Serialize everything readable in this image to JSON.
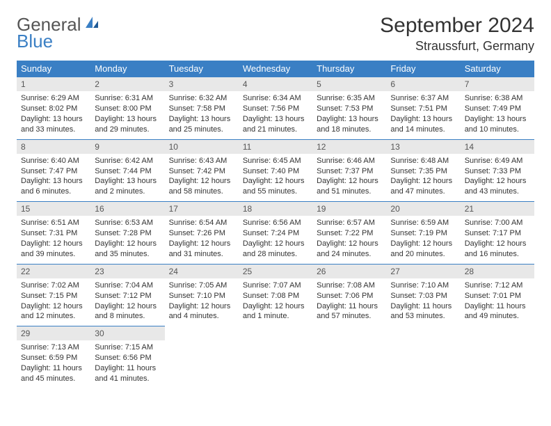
{
  "logo": {
    "word1": "General",
    "word2": "Blue"
  },
  "title": "September 2024",
  "location": "Straussfurt, Germany",
  "colors": {
    "header_bg": "#3a7fc4",
    "header_fg": "#ffffff",
    "daynum_bg": "#e8e8e8",
    "daynum_border": "#3a7fc4",
    "text": "#333333",
    "page_bg": "#ffffff"
  },
  "weekdays": [
    "Sunday",
    "Monday",
    "Tuesday",
    "Wednesday",
    "Thursday",
    "Friday",
    "Saturday"
  ],
  "grid": {
    "rows": 6,
    "cols": 7,
    "start_col": 0,
    "days_in_month": 30
  },
  "days": {
    "1": {
      "sunrise": "6:29 AM",
      "sunset": "8:02 PM",
      "daylight": "13 hours and 33 minutes."
    },
    "2": {
      "sunrise": "6:31 AM",
      "sunset": "8:00 PM",
      "daylight": "13 hours and 29 minutes."
    },
    "3": {
      "sunrise": "6:32 AM",
      "sunset": "7:58 PM",
      "daylight": "13 hours and 25 minutes."
    },
    "4": {
      "sunrise": "6:34 AM",
      "sunset": "7:56 PM",
      "daylight": "13 hours and 21 minutes."
    },
    "5": {
      "sunrise": "6:35 AM",
      "sunset": "7:53 PM",
      "daylight": "13 hours and 18 minutes."
    },
    "6": {
      "sunrise": "6:37 AM",
      "sunset": "7:51 PM",
      "daylight": "13 hours and 14 minutes."
    },
    "7": {
      "sunrise": "6:38 AM",
      "sunset": "7:49 PM",
      "daylight": "13 hours and 10 minutes."
    },
    "8": {
      "sunrise": "6:40 AM",
      "sunset": "7:47 PM",
      "daylight": "13 hours and 6 minutes."
    },
    "9": {
      "sunrise": "6:42 AM",
      "sunset": "7:44 PM",
      "daylight": "13 hours and 2 minutes."
    },
    "10": {
      "sunrise": "6:43 AM",
      "sunset": "7:42 PM",
      "daylight": "12 hours and 58 minutes."
    },
    "11": {
      "sunrise": "6:45 AM",
      "sunset": "7:40 PM",
      "daylight": "12 hours and 55 minutes."
    },
    "12": {
      "sunrise": "6:46 AM",
      "sunset": "7:37 PM",
      "daylight": "12 hours and 51 minutes."
    },
    "13": {
      "sunrise": "6:48 AM",
      "sunset": "7:35 PM",
      "daylight": "12 hours and 47 minutes."
    },
    "14": {
      "sunrise": "6:49 AM",
      "sunset": "7:33 PM",
      "daylight": "12 hours and 43 minutes."
    },
    "15": {
      "sunrise": "6:51 AM",
      "sunset": "7:31 PM",
      "daylight": "12 hours and 39 minutes."
    },
    "16": {
      "sunrise": "6:53 AM",
      "sunset": "7:28 PM",
      "daylight": "12 hours and 35 minutes."
    },
    "17": {
      "sunrise": "6:54 AM",
      "sunset": "7:26 PM",
      "daylight": "12 hours and 31 minutes."
    },
    "18": {
      "sunrise": "6:56 AM",
      "sunset": "7:24 PM",
      "daylight": "12 hours and 28 minutes."
    },
    "19": {
      "sunrise": "6:57 AM",
      "sunset": "7:22 PM",
      "daylight": "12 hours and 24 minutes."
    },
    "20": {
      "sunrise": "6:59 AM",
      "sunset": "7:19 PM",
      "daylight": "12 hours and 20 minutes."
    },
    "21": {
      "sunrise": "7:00 AM",
      "sunset": "7:17 PM",
      "daylight": "12 hours and 16 minutes."
    },
    "22": {
      "sunrise": "7:02 AM",
      "sunset": "7:15 PM",
      "daylight": "12 hours and 12 minutes."
    },
    "23": {
      "sunrise": "7:04 AM",
      "sunset": "7:12 PM",
      "daylight": "12 hours and 8 minutes."
    },
    "24": {
      "sunrise": "7:05 AM",
      "sunset": "7:10 PM",
      "daylight": "12 hours and 4 minutes."
    },
    "25": {
      "sunrise": "7:07 AM",
      "sunset": "7:08 PM",
      "daylight": "12 hours and 1 minute."
    },
    "26": {
      "sunrise": "7:08 AM",
      "sunset": "7:06 PM",
      "daylight": "11 hours and 57 minutes."
    },
    "27": {
      "sunrise": "7:10 AM",
      "sunset": "7:03 PM",
      "daylight": "11 hours and 53 minutes."
    },
    "28": {
      "sunrise": "7:12 AM",
      "sunset": "7:01 PM",
      "daylight": "11 hours and 49 minutes."
    },
    "29": {
      "sunrise": "7:13 AM",
      "sunset": "6:59 PM",
      "daylight": "11 hours and 45 minutes."
    },
    "30": {
      "sunrise": "7:15 AM",
      "sunset": "6:56 PM",
      "daylight": "11 hours and 41 minutes."
    }
  },
  "labels": {
    "sunrise_prefix": "Sunrise: ",
    "sunset_prefix": "Sunset: ",
    "daylight_prefix": "Daylight: "
  }
}
